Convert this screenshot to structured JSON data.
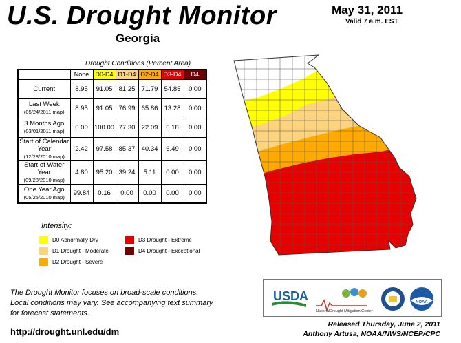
{
  "header": {
    "title": "U.S. Drought Monitor",
    "state": "Georgia",
    "date": "May 31, 2011",
    "valid": "Valid 7 a.m. EST"
  },
  "table": {
    "caption": "Drought Conditions (Percent Area)",
    "columns": [
      "None",
      "D0-D4",
      "D1-D4",
      "D2-D4",
      "D3-D4",
      "D4"
    ],
    "rows": [
      {
        "label": "Current",
        "sub": "",
        "values": [
          "8.95",
          "91.05",
          "81.25",
          "71.79",
          "54.85",
          "0.00"
        ]
      },
      {
        "label": "Last Week",
        "sub": "(05/24/2011 map)",
        "values": [
          "8.95",
          "91.05",
          "76.99",
          "65.86",
          "13.28",
          "0.00"
        ]
      },
      {
        "label": "3 Months Ago",
        "sub": "(03/01/2011 map)",
        "values": [
          "0.00",
          "100.00",
          "77.30",
          "22.09",
          "6.18",
          "0.00"
        ]
      },
      {
        "label": "Start of Calendar Year",
        "sub": "(12/28/2010 map)",
        "values": [
          "2.42",
          "97.58",
          "85.37",
          "40.34",
          "6.49",
          "0.00"
        ]
      },
      {
        "label": "Start of Water Year",
        "sub": "(09/28/2010 map)",
        "values": [
          "4.80",
          "95.20",
          "39.24",
          "5.11",
          "0.00",
          "0.00"
        ]
      },
      {
        "label": "One Year Ago",
        "sub": "(05/25/2010 map)",
        "values": [
          "99.84",
          "0.16",
          "0.00",
          "0.00",
          "0.00",
          "0.00"
        ]
      }
    ]
  },
  "legend": {
    "title": "Intensity:",
    "items": [
      {
        "label": "D0 Abnormally Dry",
        "color": "#ffff00"
      },
      {
        "label": "D1 Drought - Moderate",
        "color": "#fcd37f"
      },
      {
        "label": "D2 Drought - Severe",
        "color": "#ffaa00"
      },
      {
        "label": "D3 Drought - Extreme",
        "color": "#e60000"
      },
      {
        "label": "D4 Drought - Exceptional",
        "color": "#730000"
      }
    ]
  },
  "footer": {
    "note_line1": "The Drought Monitor focuses on broad-scale conditions.",
    "note_line2": "Local conditions may vary. See accompanying text summary",
    "note_line3": "for forecast statements.",
    "url": "http://drought.unl.edu/dm",
    "released": "Released Thursday, June 2, 2011",
    "author": "Anthony Artusa, NOAA/NWS/NCEP/CPC"
  },
  "logos": {
    "usda": "USDA",
    "ndmc_line1": "National",
    "ndmc_line2": "Drought Mitigation Center",
    "doc_icon": "department-of-commerce-seal",
    "noaa_icon": "noaa-logo",
    "noaa_text": "NOAA"
  },
  "map_colors": {
    "none": "#ffffff",
    "d0": "#ffff00",
    "d1": "#fcd37f",
    "d2": "#ffaa00",
    "d3": "#e60000",
    "d4": "#730000",
    "county_lines": "#555555"
  }
}
